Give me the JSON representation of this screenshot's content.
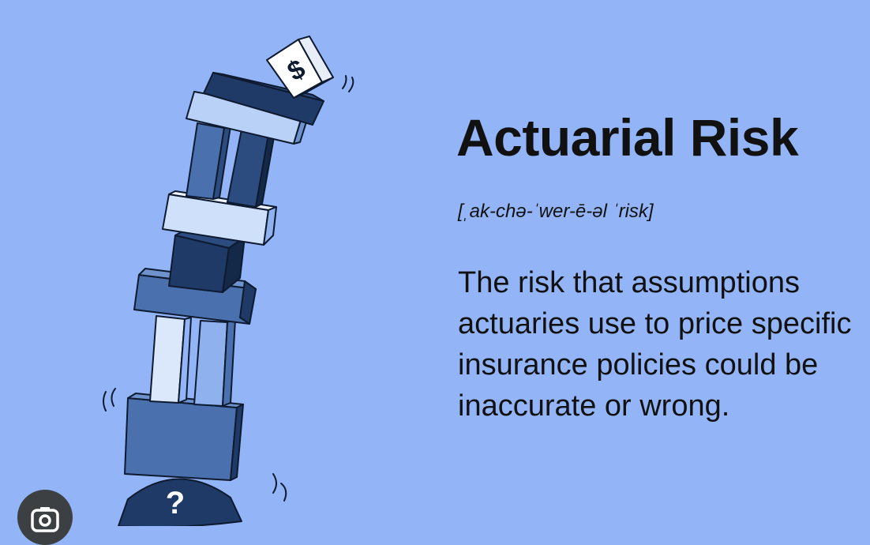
{
  "illustration": {
    "top_cube_symbol": "$",
    "base_symbol": "?",
    "colors": {
      "background": "#93b5f7",
      "dark_navy": "#1f3a66",
      "mid_blue": "#4a70ae",
      "light_blue": "#b9d1f7",
      "pale_blue": "#dbe7fb",
      "outline": "#0d1a30"
    }
  },
  "heading": {
    "title": "Actuarial Risk",
    "pronunciation": "[ˌak-chə-ˈwer-ē-əl ˈrisk]",
    "definition": "The risk that assumptions actuaries use to price specific insurance policies could be inaccurate or wrong."
  },
  "overlay": {
    "lens_button_icon": "camera-search-icon"
  }
}
